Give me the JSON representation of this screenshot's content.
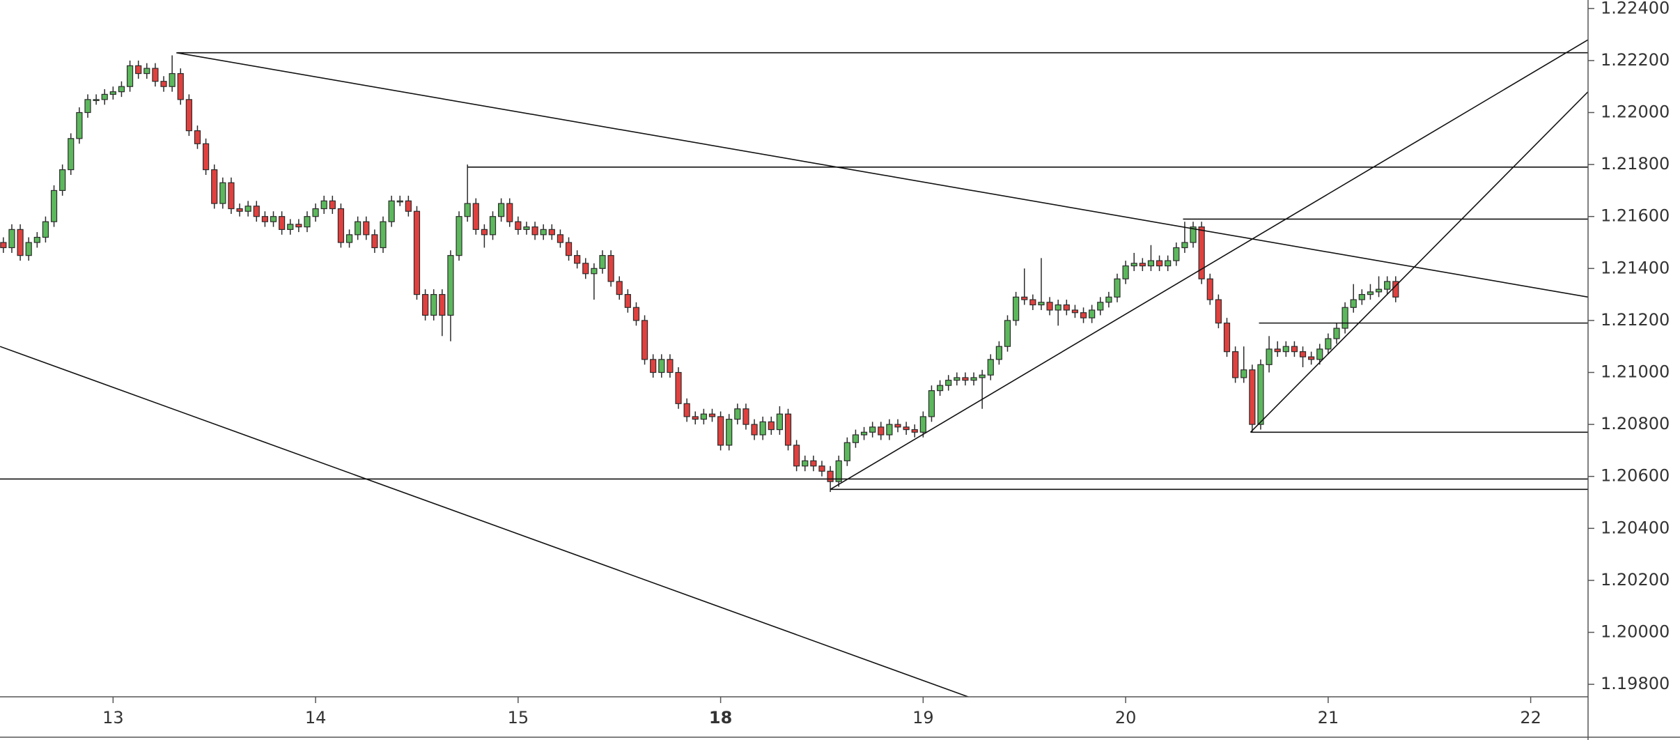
{
  "chart_data": {
    "type": "candlestick",
    "up_color": "#5cb85c",
    "down_color": "#e0413f",
    "border_color": "#2b2b2b",
    "line_color": "#111111",
    "ylim": [
      1.19752,
      1.22433
    ],
    "yticks": [
      {
        "value": 1.198,
        "label": "1.19800"
      },
      {
        "value": 1.2,
        "label": "1.20000"
      },
      {
        "value": 1.202,
        "label": "1.20200"
      },
      {
        "value": 1.204,
        "label": "1.20400"
      },
      {
        "value": 1.206,
        "label": "1.20600"
      },
      {
        "value": 1.208,
        "label": "1.20800"
      },
      {
        "value": 1.21,
        "label": "1.21000"
      },
      {
        "value": 1.212,
        "label": "1.21200"
      },
      {
        "value": 1.214,
        "label": "1.21400"
      },
      {
        "value": 1.216,
        "label": "1.21600"
      },
      {
        "value": 1.218,
        "label": "1.21800"
      },
      {
        "value": 1.22,
        "label": "1.22000"
      },
      {
        "value": 1.222,
        "label": "1.22200"
      },
      {
        "value": 1.224,
        "label": "1.22400"
      }
    ],
    "xlim": [
      -0.4,
      187.8
    ],
    "xticks": [
      {
        "value": 13,
        "label": "13"
      },
      {
        "value": 37,
        "label": "14"
      },
      {
        "value": 61,
        "label": "15"
      },
      {
        "value": 85,
        "label": "18",
        "bold": true
      },
      {
        "value": 109,
        "label": "19"
      },
      {
        "value": 133,
        "label": "20"
      },
      {
        "value": 157,
        "label": "21"
      },
      {
        "value": 181,
        "label": "22"
      }
    ],
    "open": [
      1.215,
      1.2148,
      1.2155,
      1.2145,
      1.215,
      1.2152,
      1.2158,
      1.217,
      1.2178,
      1.219,
      1.22,
      1.2205,
      1.2205,
      1.2207,
      1.2208,
      1.221,
      1.2218,
      1.2215,
      1.2217,
      1.2212,
      1.221,
      1.2215,
      1.2205,
      1.2193,
      1.2188,
      1.2178,
      1.2165,
      1.2173,
      1.2163,
      1.2162,
      1.2164,
      1.216,
      1.2158,
      1.216,
      1.2155,
      1.2157,
      1.2156,
      1.216,
      1.2163,
      1.2166,
      1.2163,
      1.215,
      1.2153,
      1.2158,
      1.2153,
      1.2148,
      1.2158,
      1.2166,
      1.2166,
      1.2162,
      1.213,
      1.2122,
      1.213,
      1.2122,
      1.2145,
      1.216,
      1.2165,
      1.2155,
      1.2153,
      1.216,
      1.2165,
      1.2158,
      1.2155,
      1.2156,
      1.2153,
      1.2155,
      1.2153,
      1.215,
      1.2145,
      1.2142,
      1.2138,
      1.214,
      1.2145,
      1.2135,
      1.213,
      1.2125,
      1.212,
      1.2105,
      1.21,
      1.2105,
      1.21,
      1.2088,
      1.2083,
      1.2082,
      1.2084,
      1.2083,
      1.2072,
      1.2082,
      1.2086,
      1.208,
      1.2076,
      1.2081,
      1.2078,
      1.2084,
      1.2072,
      1.2064,
      1.2066,
      1.2064,
      1.2062,
      1.2058,
      1.2066,
      1.2073,
      1.2076,
      1.2077,
      1.2079,
      1.2076,
      1.208,
      1.2079,
      1.2078,
      1.2077,
      1.2083,
      1.2093,
      1.2095,
      1.2097,
      1.2098,
      1.2097,
      1.2098,
      1.2099,
      1.2105,
      1.211,
      1.212,
      1.2129,
      1.2128,
      1.2126,
      1.2127,
      1.2124,
      1.2126,
      1.2124,
      1.2123,
      1.2121,
      1.2124,
      1.2127,
      1.2129,
      1.2136,
      1.2141,
      1.2142,
      1.2141,
      1.2143,
      1.2141,
      1.2143,
      1.2148,
      1.215,
      1.2156,
      1.2136,
      1.2128,
      1.2119,
      1.2108,
      1.2098,
      1.2101,
      1.208,
      1.2103,
      1.2109,
      1.2108,
      1.211,
      1.2108,
      1.2106,
      1.2105,
      1.2109,
      1.2113,
      1.2117,
      1.2125,
      1.2128,
      1.213,
      1.2131,
      1.2132,
      1.2135
    ],
    "high": [
      1.2152,
      1.2157,
      1.2157,
      1.2152,
      1.2154,
      1.216,
      1.2172,
      1.218,
      1.2192,
      1.2202,
      1.2207,
      1.2207,
      1.2209,
      1.221,
      1.2212,
      1.222,
      1.222,
      1.2219,
      1.2219,
      1.2214,
      1.2222,
      1.2217,
      1.2207,
      1.2195,
      1.219,
      1.218,
      1.2175,
      1.2175,
      1.2165,
      1.2166,
      1.2166,
      1.2162,
      1.2162,
      1.2162,
      1.2159,
      1.2159,
      1.2162,
      1.2165,
      1.2168,
      1.2168,
      1.2165,
      1.2155,
      1.216,
      1.216,
      1.2155,
      1.216,
      1.2168,
      1.2168,
      1.2168,
      1.2164,
      1.2132,
      1.2132,
      1.2132,
      1.2147,
      1.2162,
      1.218,
      1.2167,
      1.2157,
      1.2162,
      1.2167,
      1.2167,
      1.216,
      1.2158,
      1.2158,
      1.2157,
      1.2157,
      1.2155,
      1.2152,
      1.2147,
      1.2144,
      1.2142,
      1.2147,
      1.2147,
      1.2137,
      1.2132,
      1.2127,
      1.2122,
      1.2107,
      1.2107,
      1.2107,
      1.2102,
      1.209,
      1.2085,
      1.2086,
      1.2086,
      1.2085,
      1.2084,
      1.2088,
      1.2088,
      1.2082,
      1.2083,
      1.2083,
      1.2087,
      1.2086,
      1.2074,
      1.2068,
      1.2068,
      1.2066,
      1.2064,
      1.2068,
      1.2075,
      1.2078,
      1.2079,
      1.2081,
      1.2081,
      1.2082,
      1.2082,
      1.2081,
      1.208,
      1.2085,
      1.2095,
      1.2097,
      1.2099,
      1.21,
      1.21,
      1.21,
      1.2101,
      1.2107,
      1.2112,
      1.2122,
      1.2131,
      1.214,
      1.213,
      1.2144,
      1.2129,
      1.2128,
      1.2128,
      1.2126,
      1.2125,
      1.2126,
      1.2129,
      1.2131,
      1.2138,
      1.2143,
      1.2146,
      1.2144,
      1.2149,
      1.2145,
      1.2145,
      1.215,
      1.2158,
      1.2158,
      1.2158,
      1.2138,
      1.213,
      1.2121,
      1.211,
      1.211,
      1.2103,
      1.2105,
      1.2114,
      1.2112,
      1.2112,
      1.2112,
      1.211,
      1.2108,
      1.2111,
      1.2115,
      1.2119,
      1.2127,
      1.2134,
      1.2132,
      1.2134,
      1.2137,
      1.2137,
      1.2137
    ],
    "low": [
      1.2146,
      1.2146,
      1.2143,
      1.2143,
      1.2148,
      1.215,
      1.2156,
      1.2168,
      1.2176,
      1.2188,
      1.2198,
      1.2203,
      1.2203,
      1.2205,
      1.2206,
      1.2208,
      1.2213,
      1.2213,
      1.221,
      1.2208,
      1.2208,
      1.2203,
      1.2191,
      1.2186,
      1.2176,
      1.2163,
      1.2163,
      1.2161,
      1.216,
      1.216,
      1.2158,
      1.2156,
      1.2156,
      1.2153,
      1.2153,
      1.2154,
      1.2154,
      1.2158,
      1.2161,
      1.2161,
      1.2148,
      1.2148,
      1.2151,
      1.2151,
      1.2146,
      1.2146,
      1.2156,
      1.2164,
      1.216,
      1.2128,
      1.212,
      1.212,
      1.2114,
      1.2112,
      1.2143,
      1.2158,
      1.2153,
      1.2148,
      1.2151,
      1.2158,
      1.2156,
      1.2153,
      1.2153,
      1.2151,
      1.2151,
      1.2151,
      1.2148,
      1.2143,
      1.214,
      1.2136,
      1.2128,
      1.2138,
      1.2133,
      1.2128,
      1.2123,
      1.2118,
      1.2103,
      1.2098,
      1.2098,
      1.2098,
      1.2086,
      1.2081,
      1.208,
      1.208,
      1.2081,
      1.207,
      1.207,
      1.208,
      1.2078,
      1.2074,
      1.2074,
      1.2076,
      1.2076,
      1.207,
      1.2062,
      1.2062,
      1.2062,
      1.206,
      1.2054,
      1.2056,
      1.2064,
      1.2071,
      1.2074,
      1.2075,
      1.2074,
      1.2074,
      1.2077,
      1.2076,
      1.2075,
      1.2075,
      1.2081,
      1.2091,
      1.2093,
      1.2095,
      1.2095,
      1.2095,
      1.2086,
      1.2097,
      1.2103,
      1.2108,
      1.2118,
      1.2126,
      1.2124,
      1.2124,
      1.2122,
      1.2118,
      1.2122,
      1.2121,
      1.2119,
      1.2119,
      1.2122,
      1.2125,
      1.2127,
      1.2134,
      1.2139,
      1.2139,
      1.2139,
      1.2139,
      1.2139,
      1.2141,
      1.2146,
      1.2148,
      1.2134,
      1.2126,
      1.2117,
      1.2106,
      1.2096,
      1.2096,
      1.2077,
      1.2078,
      1.21,
      1.2106,
      1.2106,
      1.2106,
      1.2102,
      1.2103,
      1.2103,
      1.2107,
      1.2111,
      1.2115,
      1.2123,
      1.2126,
      1.2128,
      1.2129,
      1.213,
      1.2127
    ],
    "close": [
      1.2148,
      1.2155,
      1.2145,
      1.215,
      1.2152,
      1.2158,
      1.217,
      1.2178,
      1.219,
      1.22,
      1.2205,
      1.2205,
      1.2207,
      1.2208,
      1.221,
      1.2218,
      1.2215,
      1.2217,
      1.2212,
      1.221,
      1.2215,
      1.2205,
      1.2193,
      1.2188,
      1.2178,
      1.2165,
      1.2173,
      1.2163,
      1.2162,
      1.2164,
      1.216,
      1.2158,
      1.216,
      1.2155,
      1.2157,
      1.2156,
      1.216,
      1.2163,
      1.2166,
      1.2163,
      1.215,
      1.2153,
      1.2158,
      1.2153,
      1.2148,
      1.2158,
      1.2166,
      1.2166,
      1.2162,
      1.213,
      1.2122,
      1.213,
      1.2122,
      1.2145,
      1.216,
      1.2165,
      1.2155,
      1.2153,
      1.216,
      1.2165,
      1.2158,
      1.2155,
      1.2156,
      1.2153,
      1.2155,
      1.2153,
      1.215,
      1.2145,
      1.2142,
      1.2138,
      1.214,
      1.2145,
      1.2135,
      1.213,
      1.2125,
      1.212,
      1.2105,
      1.21,
      1.2105,
      1.21,
      1.2088,
      1.2083,
      1.2082,
      1.2084,
      1.2083,
      1.2072,
      1.2082,
      1.2086,
      1.208,
      1.2076,
      1.2081,
      1.2078,
      1.2084,
      1.2072,
      1.2064,
      1.2066,
      1.2064,
      1.2062,
      1.2058,
      1.2066,
      1.2073,
      1.2076,
      1.2077,
      1.2079,
      1.2076,
      1.208,
      1.2079,
      1.2078,
      1.2077,
      1.2083,
      1.2093,
      1.2095,
      1.2097,
      1.2098,
      1.2097,
      1.2098,
      1.2099,
      1.2105,
      1.211,
      1.212,
      1.2129,
      1.2128,
      1.2126,
      1.2127,
      1.2124,
      1.2126,
      1.2124,
      1.2123,
      1.2121,
      1.2124,
      1.2127,
      1.2129,
      1.2136,
      1.2141,
      1.2142,
      1.2141,
      1.2143,
      1.2141,
      1.2143,
      1.2148,
      1.215,
      1.2156,
      1.2136,
      1.2128,
      1.2119,
      1.2108,
      1.2098,
      1.2101,
      1.208,
      1.2103,
      1.2109,
      1.2108,
      1.211,
      1.2108,
      1.2106,
      1.2105,
      1.2109,
      1.2113,
      1.2117,
      1.2125,
      1.2128,
      1.213,
      1.2131,
      1.2132,
      1.2135,
      1.2129
    ],
    "lines": [
      {
        "x": [
          20.5,
          187.8
        ],
        "y": [
          1.2223,
          1.2129
        ]
      },
      {
        "x": [
          -0.4,
          114.5
        ],
        "y": [
          1.211,
          1.1975
        ]
      },
      {
        "x": [
          20.6,
          187.8
        ],
        "y": [
          1.2223,
          1.2223
        ]
      },
      {
        "x": [
          55,
          187.8
        ],
        "y": [
          1.2179,
          1.2179
        ]
      },
      {
        "x": [
          139.8,
          187.8
        ],
        "y": [
          1.2159,
          1.2159
        ]
      },
      {
        "x": [
          148.8,
          187.8
        ],
        "y": [
          1.2119,
          1.2119
        ]
      },
      {
        "x": [
          147.8,
          187.8
        ],
        "y": [
          1.2077,
          1.2077
        ]
      },
      {
        "x": [
          -0.4,
          187.8
        ],
        "y": [
          1.2059,
          1.2059
        ]
      },
      {
        "x": [
          98,
          187.8
        ],
        "y": [
          1.2055,
          1.2055
        ]
      },
      {
        "x": [
          98,
          187.8
        ],
        "y": [
          1.2055,
          1.2228
        ]
      },
      {
        "x": [
          147.8,
          187.8
        ],
        "y": [
          1.2077,
          1.2208
        ]
      }
    ]
  }
}
